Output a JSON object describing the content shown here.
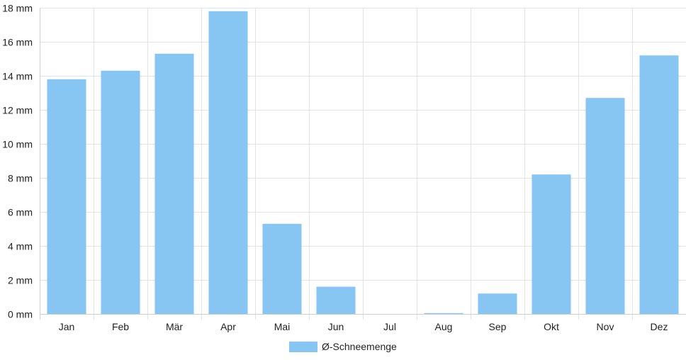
{
  "chart_data": {
    "type": "bar",
    "categories": [
      "Jan",
      "Feb",
      "Mär",
      "Apr",
      "Mai",
      "Jun",
      "Jul",
      "Aug",
      "Sep",
      "Okt",
      "Nov",
      "Dez"
    ],
    "series": [
      {
        "name": "Ø-Schneemenge",
        "color": "#87c6f2",
        "values": [
          13.8,
          14.3,
          15.3,
          17.8,
          5.3,
          1.6,
          0,
          0.05,
          1.2,
          8.2,
          12.7,
          15.2
        ]
      }
    ],
    "yticks": [
      "0 mm",
      "2 mm",
      "4 mm",
      "6 mm",
      "8 mm",
      "10 mm",
      "12 mm",
      "14 mm",
      "16 mm",
      "18 mm"
    ],
    "ylim": [
      0,
      18
    ],
    "grid": true,
    "legend_position": "bottom"
  }
}
